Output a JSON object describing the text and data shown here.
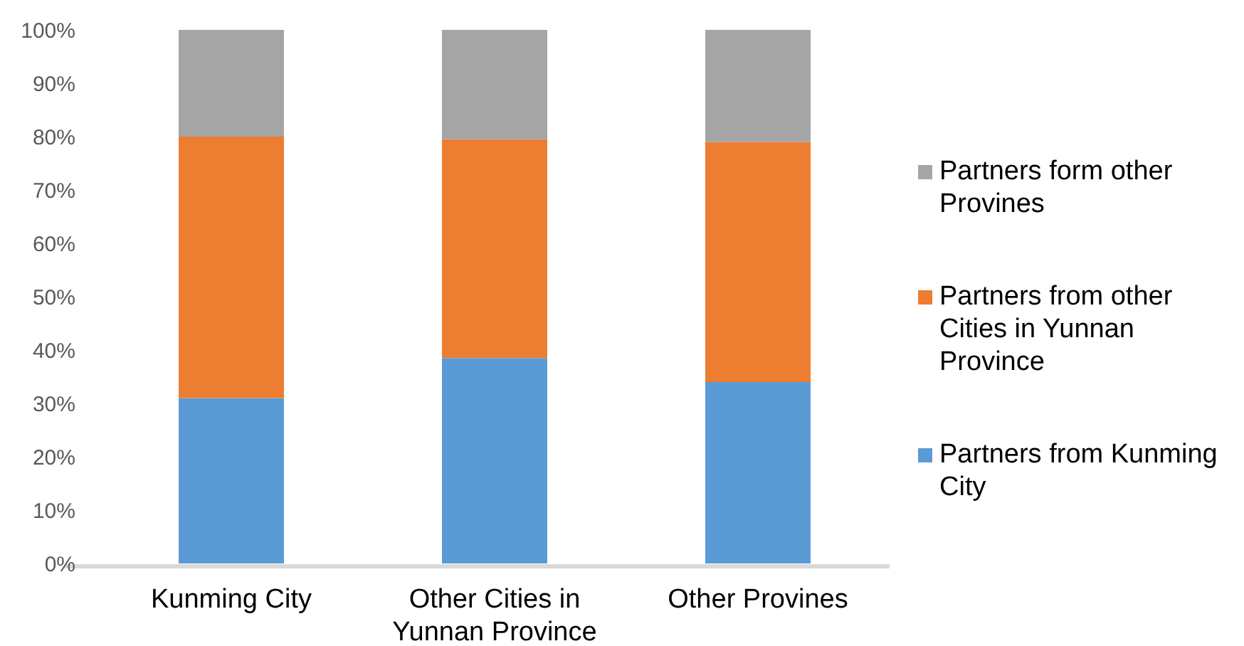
{
  "chart_data": {
    "type": "bar",
    "stacked": true,
    "categories": [
      "Kunming City",
      "Other Cities in Yunnan Province",
      "Other Provines"
    ],
    "series": [
      {
        "name": "Partners from Kunming City",
        "color": "#5b9bd5",
        "values": [
          31,
          38.5,
          34
        ]
      },
      {
        "name": "Partners from other Cities in Yunnan Province",
        "color": "#ed7d31",
        "values": [
          49,
          41,
          45
        ]
      },
      {
        "name": "Partners form other Provines",
        "color": "#a5a5a5",
        "values": [
          20,
          20.5,
          21
        ]
      }
    ],
    "ylim": [
      0,
      100
    ],
    "yticks": [
      {
        "value": 0,
        "label": "0%"
      },
      {
        "value": 10,
        "label": "10%"
      },
      {
        "value": 20,
        "label": "20%"
      },
      {
        "value": 30,
        "label": "30%"
      },
      {
        "value": 40,
        "label": "40%"
      },
      {
        "value": 50,
        "label": "50%"
      },
      {
        "value": 60,
        "label": "60%"
      },
      {
        "value": 70,
        "label": "70%"
      },
      {
        "value": 80,
        "label": "80%"
      },
      {
        "value": 90,
        "label": "90%"
      },
      {
        "value": 100,
        "label": "100%"
      }
    ],
    "grid": false,
    "legend": "right"
  }
}
